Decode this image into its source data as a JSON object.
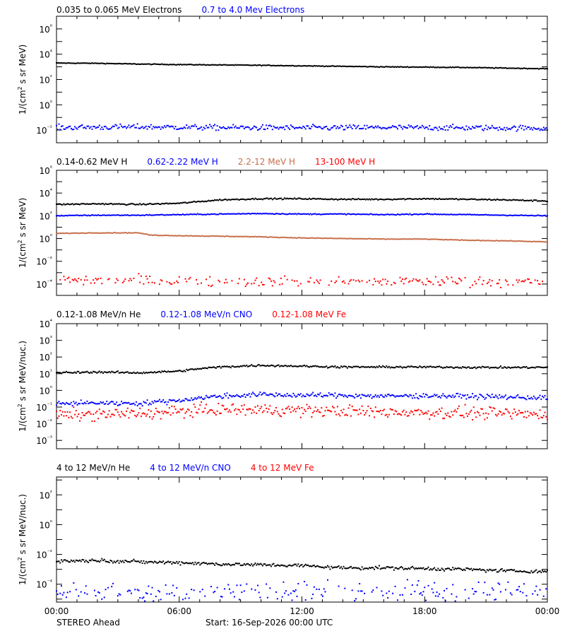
{
  "colors": {
    "black": "#000000",
    "blue": "#0000ff",
    "orange": "#c86e4b",
    "red": "#ff0000"
  },
  "footer": {
    "left": "STEREO Ahead",
    "center": "Start: 16-Sep-2026 00:00 UTC"
  },
  "x_axis": {
    "ticks": [
      0,
      6,
      12,
      18,
      24
    ],
    "tick_labels": [
      "00:00",
      "06:00",
      "12:00",
      "18:00",
      "00:00"
    ]
  },
  "chart_data": [
    {
      "type": "scatter",
      "ylabel": "1/(cm2 s sr MeV)",
      "yscale": "log",
      "ylim_log10": [
        -3,
        7
      ],
      "ytick_exponents": [
        -2,
        0,
        2,
        4,
        6
      ],
      "ytick_labels": [
        "10⁻²",
        "10⁰",
        "10²",
        "10⁴",
        "10⁶"
      ],
      "x_unit": "hours",
      "xlim": [
        0,
        24
      ],
      "series": [
        {
          "name": "0.035 to 0.065 MeV Electrons",
          "color": "#000000",
          "x": [
            0,
            2,
            4,
            6,
            8,
            10,
            12,
            14,
            16,
            18,
            20,
            22,
            24
          ],
          "log10_y": [
            3.3,
            3.28,
            3.22,
            3.18,
            3.15,
            3.12,
            3.08,
            3.04,
            3.0,
            2.98,
            2.95,
            2.9,
            2.85
          ],
          "scatter": 0.02
        },
        {
          "name": "0.7 to 4.0 Mev Electrons",
          "color": "#0000ff",
          "x": [
            0,
            4,
            8,
            12,
            16,
            20,
            24
          ],
          "log10_y": [
            -1.8,
            -1.75,
            -1.8,
            -1.82,
            -1.8,
            -1.82,
            -1.85
          ],
          "scatter": 0.15
        }
      ]
    },
    {
      "type": "scatter",
      "ylabel": "1/(cm2 s sr MeV)",
      "yscale": "log",
      "ylim_log10": [
        -5,
        6
      ],
      "ytick_exponents": [
        -4,
        -2,
        0,
        2,
        4,
        6
      ],
      "ytick_labels": [
        "10⁻⁴",
        "10⁻²",
        "10⁰",
        "10²",
        "10⁴",
        "10⁶"
      ],
      "x_unit": "hours",
      "xlim": [
        0,
        24
      ],
      "series": [
        {
          "name": "0.14-0.62 MeV H",
          "color": "#000000",
          "x": [
            0,
            2,
            4,
            6,
            8,
            10,
            12,
            14,
            16,
            18,
            20,
            22,
            24
          ],
          "log10_y": [
            3.0,
            3.05,
            3.0,
            3.1,
            3.4,
            3.5,
            3.5,
            3.45,
            3.45,
            3.5,
            3.45,
            3.4,
            3.3
          ],
          "scatter": 0.04
        },
        {
          "name": "0.62-2.22 MeV H",
          "color": "#0000ff",
          "x": [
            0,
            2,
            4,
            6,
            8,
            10,
            12,
            14,
            16,
            18,
            20,
            22,
            24
          ],
          "log10_y": [
            2.0,
            2.05,
            2.05,
            2.1,
            2.15,
            2.2,
            2.15,
            2.15,
            2.1,
            2.15,
            2.1,
            2.05,
            2.0
          ],
          "scatter": 0.03
        },
        {
          "name": "2.2-12 MeV H",
          "color": "#c86e4b",
          "x": [
            0,
            2,
            4,
            4.6,
            6,
            8,
            10,
            12,
            14,
            16,
            18,
            20,
            22,
            24
          ],
          "log10_y": [
            0.45,
            0.5,
            0.5,
            0.3,
            0.25,
            0.2,
            0.15,
            0.05,
            0.0,
            -0.05,
            -0.05,
            -0.15,
            -0.2,
            -0.3
          ],
          "scatter": 0.02
        },
        {
          "name": "13-100 MeV H",
          "color": "#ff0000",
          "x": [
            0,
            4,
            8,
            12,
            16,
            20,
            24
          ],
          "log10_y": [
            -3.6,
            -3.7,
            -3.75,
            -3.8,
            -3.75,
            -3.75,
            -3.8
          ],
          "scatter": 0.3
        }
      ]
    },
    {
      "type": "scatter",
      "ylabel": "1/(cm2 s sr MeV/nuc.)",
      "yscale": "log",
      "ylim_log10": [
        -3.5,
        4
      ],
      "ytick_exponents": [
        -3,
        -2,
        -1,
        0,
        1,
        2,
        3,
        4
      ],
      "ytick_labels": [
        "10⁻³",
        "10⁻²",
        "10⁻¹",
        "10⁰",
        "10¹",
        "10²",
        "10³",
        "10⁴"
      ],
      "x_unit": "hours",
      "xlim": [
        0,
        24
      ],
      "series": [
        {
          "name": "0.12-1.08 MeV/n He",
          "color": "#000000",
          "x": [
            0,
            2,
            4,
            5,
            6,
            7,
            8,
            10,
            12,
            14,
            16,
            18,
            20,
            22,
            24
          ],
          "log10_y": [
            1.05,
            1.1,
            1.05,
            1.1,
            1.15,
            1.3,
            1.4,
            1.5,
            1.45,
            1.4,
            1.4,
            1.4,
            1.38,
            1.37,
            1.38
          ],
          "scatter": 0.04
        },
        {
          "name": "0.12-1.08 MeV/n CNO",
          "color": "#0000ff",
          "x": [
            0,
            2,
            4,
            6,
            7,
            8,
            10,
            12,
            14,
            16,
            18,
            20,
            22,
            24
          ],
          "log10_y": [
            -0.8,
            -0.75,
            -0.78,
            -0.6,
            -0.45,
            -0.35,
            -0.25,
            -0.3,
            -0.3,
            -0.35,
            -0.32,
            -0.35,
            -0.4,
            -0.45
          ],
          "scatter": 0.1
        },
        {
          "name": "0.12-1.08 MeV Fe",
          "color": "#ff0000",
          "x": [
            0,
            4,
            8,
            12,
            16,
            20,
            24
          ],
          "log10_y": [
            -1.5,
            -1.4,
            -1.15,
            -1.2,
            -1.3,
            -1.35,
            -1.45
          ],
          "scatter": 0.25
        }
      ]
    },
    {
      "type": "scatter",
      "ylabel": "1/(cm2 s sr MeV/nuc.)",
      "yscale": "log",
      "ylim_log10": [
        -5.2,
        3.2
      ],
      "ytick_exponents": [
        -4,
        -2,
        0,
        2
      ],
      "ytick_labels": [
        "10⁻⁴",
        "10⁻²",
        "10⁰",
        "10²"
      ],
      "x_unit": "hours",
      "xlim": [
        0,
        24
      ],
      "series": [
        {
          "name": "4 to 12 MeV/n He",
          "color": "#000000",
          "x": [
            0,
            2,
            4,
            6,
            8,
            10,
            12,
            14,
            16,
            18,
            20,
            22,
            24
          ],
          "log10_y": [
            -2.45,
            -2.4,
            -2.5,
            -2.55,
            -2.65,
            -2.7,
            -2.75,
            -2.9,
            -2.9,
            -2.95,
            -3.0,
            -3.1,
            -3.15
          ],
          "scatter": 0.08
        },
        {
          "name": "4 to 12 MeV/n CNO",
          "color": "#0000ff",
          "x": [
            0,
            24
          ],
          "log10_y": [
            -4.5,
            -4.5
          ],
          "scatter": 0.5
        },
        {
          "name": "4 to 12 MeV Fe",
          "color": "#ff0000",
          "x": [],
          "log10_y": [],
          "scatter": 0
        }
      ]
    }
  ]
}
